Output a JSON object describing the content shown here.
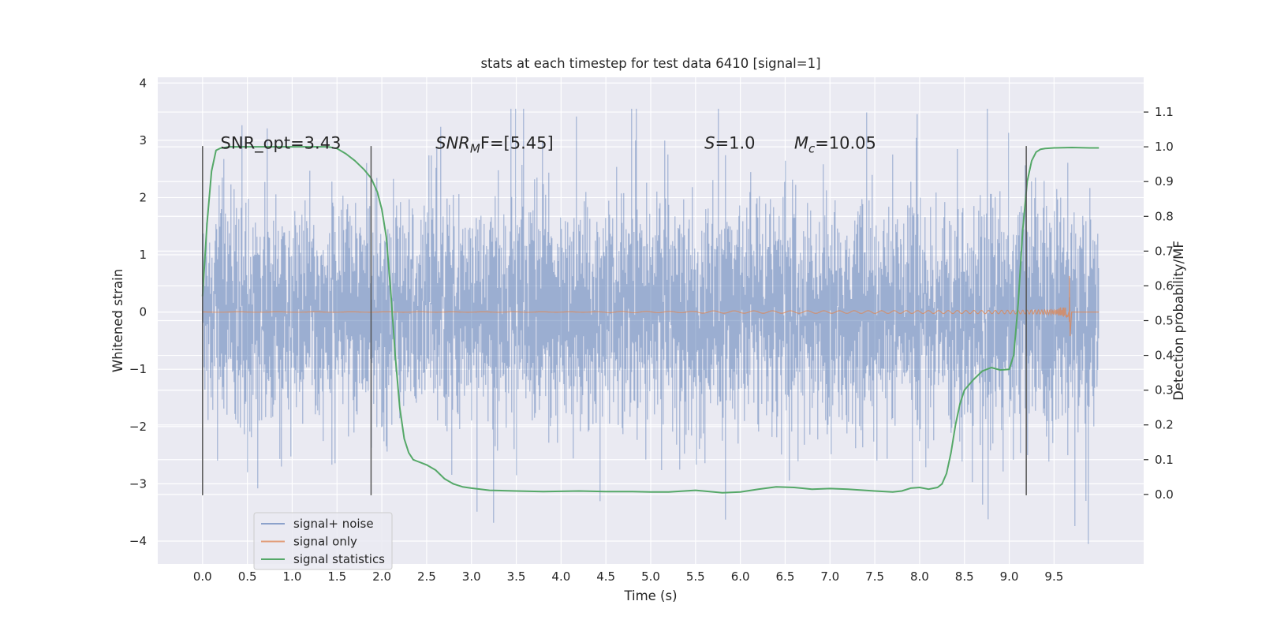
{
  "chart_data": {
    "type": "line",
    "title": "stats at each timestep for test data 6410 [signal=1]",
    "xlabel": "Time (s)",
    "ylabel": "Whitened strain",
    "y2label": "Detection probability/MF",
    "xlim": [
      -0.5,
      10.5
    ],
    "ylim": [
      -4.4,
      4.1
    ],
    "y2lim": [
      -0.2,
      1.2
    ],
    "xticks": [
      "0.0",
      "0.5",
      "1.0",
      "1.5",
      "2.0",
      "2.5",
      "3.0",
      "3.5",
      "4.0",
      "4.5",
      "5.0",
      "5.5",
      "6.0",
      "6.5",
      "7.0",
      "7.5",
      "8.0",
      "8.5",
      "9.0",
      "9.5"
    ],
    "yticks": [
      "−4",
      "−3",
      "−2",
      "−1",
      "0",
      "1",
      "2",
      "3",
      "4"
    ],
    "y2ticks": [
      "0.0",
      "0.1",
      "0.2",
      "0.3",
      "0.4",
      "0.5",
      "0.6",
      "0.7",
      "0.8",
      "0.9",
      "1.0",
      "1.1"
    ],
    "grid": true,
    "legend_placement": "lower-left",
    "colors": {
      "background": "#eaeaf2",
      "grid": "#ffffff",
      "signal_noise": "#4c72b0",
      "signal_only": "#dd8452",
      "signal_statistics": "#55a868",
      "vline": "#555555"
    },
    "annotations": [
      {
        "text": "SNR_opt=3.43",
        "x": 0.2,
        "y": 2.95,
        "math": false
      },
      {
        "text_main": "SNR",
        "text_sub": "M",
        "text_after": "F=[5.45]",
        "x": 2.6,
        "y": 2.95,
        "math": true
      },
      {
        "text_main": "S",
        "text_sub": "",
        "text_after": "=1.0",
        "x": 5.6,
        "y": 2.95,
        "math": true
      },
      {
        "text_main": "M",
        "text_sub": "c",
        "text_after": "=10.05",
        "x": 6.6,
        "y": 2.95,
        "math": true
      }
    ],
    "vlines": [
      0.0,
      1.88,
      9.19
    ],
    "vline_yrange": [
      -3.2,
      2.9
    ],
    "series": [
      {
        "name": "signal+ noise",
        "axis": "left",
        "kind": "noise",
        "t_range": [
          0.0,
          10.0
        ],
        "amplitude_std": 1.0,
        "extremes_approx": [
          3.55,
          -4.05
        ]
      },
      {
        "name": "signal only",
        "axis": "left",
        "kind": "chirp",
        "t_range": [
          0.0,
          10.0
        ],
        "merger_time": 9.67,
        "peak_amplitude": 0.63,
        "trough_amplitude": -0.42
      },
      {
        "name": "signal statistics",
        "axis": "right",
        "kind": "line",
        "x": [
          0.0,
          0.05,
          0.1,
          0.15,
          0.2,
          0.3,
          0.5,
          0.8,
          1.0,
          1.2,
          1.4,
          1.5,
          1.6,
          1.7,
          1.8,
          1.88,
          1.95,
          2.0,
          2.05,
          2.1,
          2.15,
          2.2,
          2.25,
          2.3,
          2.35,
          2.4,
          2.45,
          2.5,
          2.6,
          2.7,
          2.8,
          2.9,
          3.0,
          3.2,
          3.5,
          3.8,
          4.0,
          4.2,
          4.5,
          4.8,
          5.0,
          5.2,
          5.5,
          5.8,
          6.0,
          6.2,
          6.4,
          6.6,
          6.8,
          7.0,
          7.2,
          7.5,
          7.7,
          7.8,
          7.9,
          8.0,
          8.1,
          8.2,
          8.25,
          8.3,
          8.35,
          8.4,
          8.45,
          8.5,
          8.6,
          8.7,
          8.8,
          8.9,
          9.0,
          9.05,
          9.1,
          9.15,
          9.2,
          9.25,
          9.3,
          9.35,
          9.4,
          9.5,
          9.7,
          9.9,
          10.0
        ],
        "y": [
          0.57,
          0.78,
          0.93,
          0.99,
          0.996,
          1.0,
          1.0,
          1.0,
          1.0,
          1.0,
          1.0,
          0.995,
          0.98,
          0.96,
          0.935,
          0.91,
          0.87,
          0.82,
          0.74,
          0.58,
          0.4,
          0.25,
          0.16,
          0.12,
          0.1,
          0.095,
          0.09,
          0.085,
          0.07,
          0.045,
          0.03,
          0.022,
          0.018,
          0.012,
          0.01,
          0.008,
          0.009,
          0.01,
          0.008,
          0.008,
          0.007,
          0.007,
          0.012,
          0.005,
          0.007,
          0.015,
          0.022,
          0.02,
          0.015,
          0.017,
          0.015,
          0.01,
          0.007,
          0.01,
          0.018,
          0.02,
          0.015,
          0.02,
          0.03,
          0.06,
          0.12,
          0.2,
          0.26,
          0.3,
          0.33,
          0.355,
          0.365,
          0.358,
          0.36,
          0.4,
          0.55,
          0.76,
          0.9,
          0.96,
          0.985,
          0.993,
          0.995,
          0.997,
          0.998,
          0.997,
          0.997
        ]
      }
    ]
  }
}
